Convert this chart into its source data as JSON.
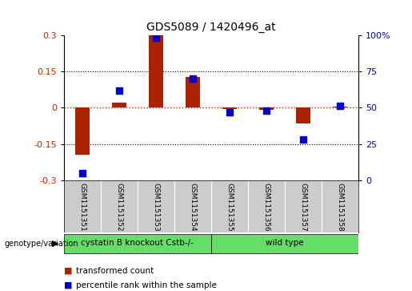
{
  "title": "GDS5089 / 1420496_at",
  "samples": [
    "GSM1151351",
    "GSM1151352",
    "GSM1151353",
    "GSM1151354",
    "GSM1151355",
    "GSM1151356",
    "GSM1151357",
    "GSM1151358"
  ],
  "transformed_count": [
    -0.195,
    0.02,
    0.305,
    0.125,
    -0.005,
    -0.01,
    -0.065,
    0.005
  ],
  "percentile_rank": [
    5,
    62,
    98,
    70,
    47,
    48,
    28,
    51
  ],
  "group1_samples": 4,
  "group1_label": "cystatin B knockout Cstb-/-",
  "group2_label": "wild type",
  "group_color": "#66dd66",
  "bar_color": "#aa2200",
  "dot_color": "#0000cc",
  "ylim_left": [
    -0.3,
    0.3
  ],
  "ylim_right": [
    0,
    100
  ],
  "yticks_left": [
    -0.3,
    -0.15,
    0,
    0.15,
    0.3
  ],
  "yticks_right": [
    0,
    25,
    50,
    75,
    100
  ],
  "ytick_labels_right": [
    "0",
    "25",
    "50",
    "75",
    "100%"
  ],
  "ylabel_left_color": "#cc2200",
  "ylabel_right_color": "#0000cc",
  "background_color": "#ffffff",
  "plot_bg_color": "#ffffff",
  "zero_line_color": "#cc2200",
  "grid_color": "#000000",
  "sample_bg_color": "#cccccc",
  "legend_transformed": "transformed count",
  "legend_percentile": "percentile rank within the sample",
  "genotype_label": "genotype/variation"
}
